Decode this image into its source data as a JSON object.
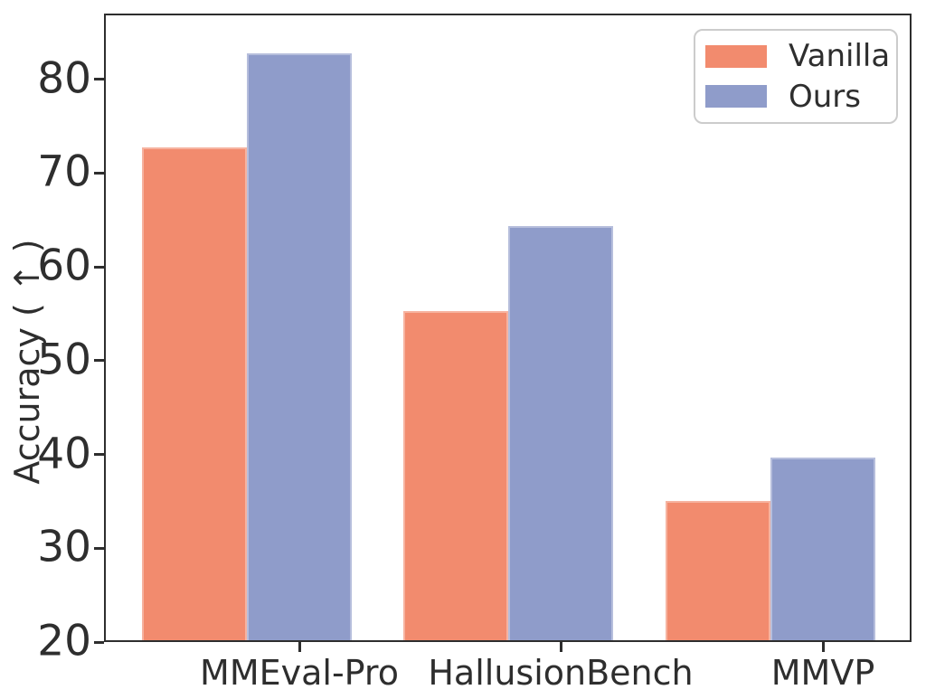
{
  "chart_data": {
    "type": "bar",
    "title": "",
    "xlabel": "",
    "ylabel": "Accuracy ( ↑ )",
    "categories": [
      "MMEval-Pro",
      "HallusionBench",
      "MMVP"
    ],
    "series": [
      {
        "name": "Vanilla",
        "color": "#F28B6E",
        "values": [
          72.7,
          55.3,
          35.0
        ]
      },
      {
        "name": "Ours",
        "color": "#8F9CCA",
        "values": [
          82.8,
          64.3,
          39.7
        ]
      }
    ],
    "yticks": [
      20,
      30,
      40,
      50,
      60,
      70,
      80
    ],
    "ylim": [
      20,
      87
    ],
    "grid": false,
    "legend_position": "upper right",
    "colors": {
      "spine": "#2e2e2e",
      "text": "#2e2e2e",
      "legend_border": "#cccccc",
      "background": "#ffffff"
    }
  }
}
